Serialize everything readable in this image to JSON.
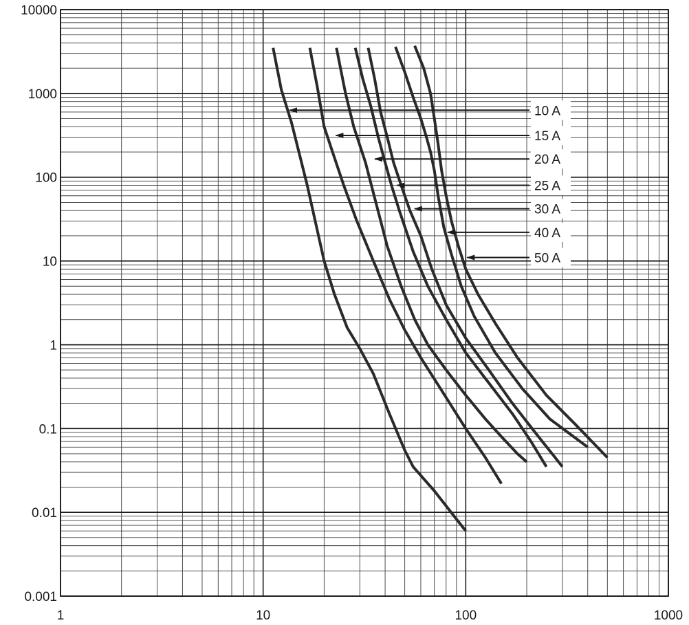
{
  "chart_data": {
    "type": "line",
    "title": "",
    "xlabel": "",
    "ylabel": "",
    "x_scale": "log",
    "y_scale": "log",
    "xlim": [
      1,
      1000
    ],
    "ylim": [
      0.001,
      10000
    ],
    "grid": true,
    "x_tick_labels": [
      "1",
      "10",
      "100",
      "1000"
    ],
    "y_tick_labels": [
      "10000",
      "1000",
      "100",
      "10",
      "1",
      "0.1",
      "0.01",
      "0.001"
    ],
    "line_color": "#2a2a2a",
    "series": [
      {
        "name": "10 A",
        "x": [
          11.2,
          12.3,
          13.8,
          16.5,
          20,
          22.5,
          26,
          30,
          35,
          42,
          50,
          55,
          70,
          100
        ],
        "y": [
          3500,
          1100,
          450,
          80,
          10,
          4,
          1.6,
          0.9,
          0.45,
          0.15,
          0.055,
          0.035,
          0.018,
          0.006
        ]
      },
      {
        "name": "15 A",
        "x": [
          17,
          18.5,
          20,
          22,
          25,
          29,
          35,
          42,
          50,
          60,
          75,
          100,
          125,
          150
        ],
        "y": [
          3500,
          1200,
          400,
          200,
          80,
          30,
          10,
          3.5,
          1.5,
          0.7,
          0.3,
          0.1,
          0.045,
          0.022
        ]
      },
      {
        "name": "20 A",
        "x": [
          23,
          25.5,
          28,
          32,
          36,
          41,
          48,
          56,
          65,
          80,
          100,
          125,
          150,
          180,
          200
        ],
        "y": [
          3500,
          1000,
          400,
          150,
          50,
          15,
          5,
          2,
          1,
          0.5,
          0.25,
          0.13,
          0.08,
          0.05,
          0.04
        ]
      },
      {
        "name": "25 A",
        "x": [
          28.5,
          31,
          34,
          37,
          40,
          43,
          47,
          55,
          65,
          80,
          100,
          130,
          170,
          210,
          250
        ],
        "y": [
          3500,
          1500,
          700,
          300,
          150,
          80,
          40,
          13,
          5,
          2,
          0.8,
          0.35,
          0.15,
          0.07,
          0.035
        ]
      },
      {
        "name": "30 A",
        "x": [
          33,
          35.5,
          38,
          41,
          44,
          48,
          53,
          60,
          68,
          80,
          100,
          130,
          170,
          220,
          300
        ],
        "y": [
          3500,
          1500,
          600,
          300,
          150,
          80,
          40,
          20,
          8,
          3,
          1.2,
          0.5,
          0.2,
          0.09,
          0.035
        ]
      },
      {
        "name": "40 A",
        "x": [
          45,
          50,
          55,
          60,
          64,
          67,
          70,
          73,
          78,
          85,
          95,
          110,
          140,
          190,
          260,
          400
        ],
        "y": [
          3600,
          1800,
          900,
          500,
          300,
          200,
          120,
          60,
          25,
          12,
          5,
          2.2,
          0.8,
          0.3,
          0.13,
          0.06
        ]
      },
      {
        "name": "50 A",
        "x": [
          56,
          62,
          67,
          70,
          73,
          76,
          80,
          85,
          92,
          100,
          115,
          140,
          180,
          250,
          350,
          500
        ],
        "y": [
          3700,
          2000,
          1000,
          500,
          250,
          120,
          60,
          30,
          15,
          8,
          4,
          1.8,
          0.7,
          0.25,
          0.11,
          0.045
        ]
      }
    ],
    "annotations": [
      {
        "label": "10 A",
        "arrow_to": [
          13.3,
          630
        ]
      },
      {
        "label": "15 A",
        "arrow_to": [
          22.5,
          315
        ]
      },
      {
        "label": "20 A",
        "arrow_to": [
          35,
          165
        ]
      },
      {
        "label": "25 A",
        "arrow_to": [
          45,
          80
        ]
      },
      {
        "label": "30 A",
        "arrow_to": [
          55,
          42
        ]
      },
      {
        "label": "40 A",
        "arrow_to": [
          80,
          22
        ]
      },
      {
        "label": "50 A",
        "arrow_to": [
          100,
          11
        ]
      }
    ]
  }
}
